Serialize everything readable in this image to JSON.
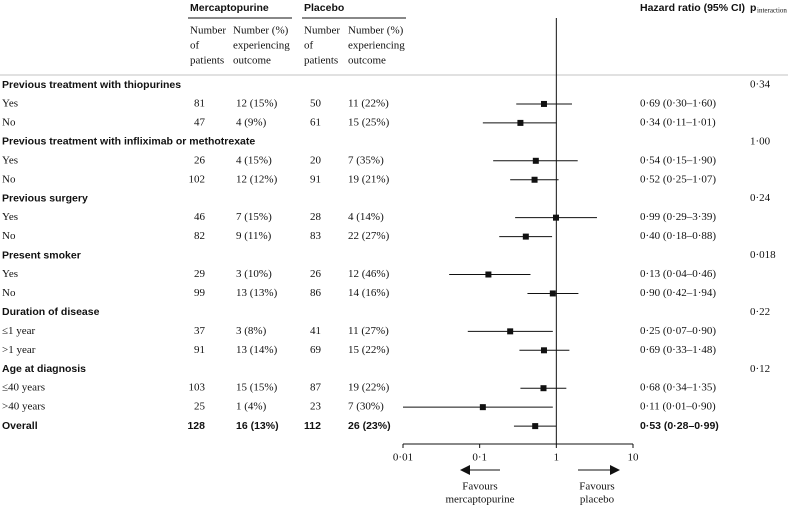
{
  "chart_data": {
    "type": "forest",
    "header": {
      "treatment": "Mercaptopurine",
      "control": "Placebo",
      "n_col": [
        "Number",
        "of",
        "patients"
      ],
      "e_col": [
        "Number (%)",
        "experiencing",
        "outcome"
      ],
      "effect": "Hazard ratio (95% CI)",
      "p": "p",
      "p_sub": "interaction"
    },
    "groups": [
      {
        "label": "Previous treatment with thiopurines",
        "p": "0·34",
        "rows": [
          {
            "label": "Yes",
            "m_n": 81,
            "m_e": "12 (15%)",
            "p_n": 50,
            "p_e": "11 (22%)",
            "hr": 0.69,
            "ci": [
              0.3,
              1.6
            ],
            "hr_label": "0·69 (0·30–1·60)"
          },
          {
            "label": "No",
            "m_n": 47,
            "m_e": "4 (9%)",
            "p_n": 61,
            "p_e": "15 (25%)",
            "hr": 0.34,
            "ci": [
              0.11,
              1.01
            ],
            "hr_label": "0·34 (0·11–1·01)"
          }
        ]
      },
      {
        "label": "Previous treatment with infliximab or methotrexate",
        "p": "1·00",
        "rows": [
          {
            "label": "Yes",
            "m_n": 26,
            "m_e": "4 (15%)",
            "p_n": 20,
            "p_e": "7 (35%)",
            "hr": 0.54,
            "ci": [
              0.15,
              1.9
            ],
            "hr_label": "0·54 (0·15–1·90)"
          },
          {
            "label": "No",
            "m_n": 102,
            "m_e": "12 (12%)",
            "p_n": 91,
            "p_e": "19 (21%)",
            "hr": 0.52,
            "ci": [
              0.25,
              1.07
            ],
            "hr_label": "0·52 (0·25–1·07)"
          }
        ]
      },
      {
        "label": "Previous surgery",
        "p": "0·24",
        "rows": [
          {
            "label": "Yes",
            "m_n": 46,
            "m_e": "7 (15%)",
            "p_n": 28,
            "p_e": "4 (14%)",
            "hr": 0.99,
            "ci": [
              0.29,
              3.39
            ],
            "hr_label": "0·99 (0·29–3·39)"
          },
          {
            "label": "No",
            "m_n": 82,
            "m_e": "9 (11%)",
            "p_n": 83,
            "p_e": "22 (27%)",
            "hr": 0.4,
            "ci": [
              0.18,
              0.88
            ],
            "hr_label": "0·40 (0·18–0·88)"
          }
        ]
      },
      {
        "label": "Present smoker",
        "p": "0·018",
        "rows": [
          {
            "label": "Yes",
            "m_n": 29,
            "m_e": "3 (10%)",
            "p_n": 26,
            "p_e": "12 (46%)",
            "hr": 0.13,
            "ci": [
              0.04,
              0.46
            ],
            "hr_label": "0·13 (0·04–0·46)"
          },
          {
            "label": "No",
            "m_n": 99,
            "m_e": "13 (13%)",
            "p_n": 86,
            "p_e": "14 (16%)",
            "hr": 0.9,
            "ci": [
              0.42,
              1.94
            ],
            "hr_label": "0·90 (0·42–1·94)"
          }
        ]
      },
      {
        "label": "Duration of disease",
        "p": "0·22",
        "rows": [
          {
            "label": "≤1 year",
            "m_n": 37,
            "m_e": "3 (8%)",
            "p_n": 41,
            "p_e": "11 (27%)",
            "hr": 0.25,
            "ci": [
              0.07,
              0.9
            ],
            "hr_label": "0·25 (0·07–0·90)"
          },
          {
            "label": ">1 year",
            "m_n": 91,
            "m_e": "13 (14%)",
            "p_n": 69,
            "p_e": "15 (22%)",
            "hr": 0.69,
            "ci": [
              0.33,
              1.48
            ],
            "hr_label": "0·69 (0·33–1·48)"
          }
        ]
      },
      {
        "label": "Age at diagnosis",
        "p": "0·12",
        "rows": [
          {
            "label": "≤40 years",
            "m_n": 103,
            "m_e": "15 (15%)",
            "p_n": 87,
            "p_e": "19 (22%)",
            "hr": 0.68,
            "ci": [
              0.34,
              1.35
            ],
            "hr_label": "0·68 (0·34–1·35)"
          },
          {
            "label": ">40 years",
            "m_n": 25,
            "m_e": "1 (4%)",
            "p_n": 23,
            "p_e": "7 (30%)",
            "hr": 0.11,
            "ci": [
              0.01,
              0.9
            ],
            "hr_label": "0·11 (0·01–0·90)"
          }
        ]
      }
    ],
    "overall": {
      "label": "Overall",
      "m_n": 128,
      "m_e": "16 (13%)",
      "p_n": 112,
      "p_e": "26 (23%)",
      "hr": 0.53,
      "ci": [
        0.28,
        0.99
      ],
      "hr_label": "0·53 (0·28–0·99)",
      "bold": true
    },
    "log_x": true,
    "xlim": [
      0.01,
      10
    ],
    "xticks": [
      {
        "value": 0.01,
        "label": "0·01"
      },
      {
        "value": 0.1,
        "label": "0·1"
      },
      1,
      10
    ],
    "favours_left": [
      "Favours",
      "mercaptopurine"
    ],
    "favours_right": [
      "Favours",
      "placebo"
    ]
  }
}
